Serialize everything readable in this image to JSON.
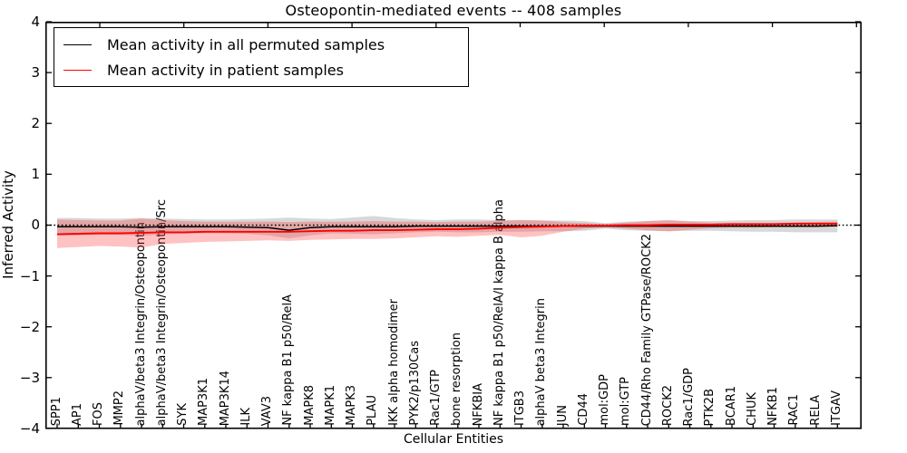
{
  "title": "Osteopontin-mediated events -- 408 samples",
  "axes": {
    "x_label": "Cellular Entities",
    "y_label": "Inferred Activity",
    "y_tick_labels": [
      "4",
      "3",
      "2",
      "1",
      "0",
      "−1",
      "−2",
      "−3",
      "−4"
    ]
  },
  "legend": {
    "items": [
      {
        "label": "Mean activity in all permuted samples",
        "color": "#000000"
      },
      {
        "label": "Mean activity in patient samples",
        "color": "#ff0000"
      }
    ]
  },
  "chart_data": {
    "type": "line",
    "title": "Osteopontin-mediated events -- 408 samples",
    "xlabel": "Cellular Entities",
    "ylabel": "Inferred Activity",
    "ylim": [
      -4,
      4
    ],
    "y_ticks": [
      4,
      3,
      2,
      1,
      0,
      -1,
      -2,
      -3,
      -4
    ],
    "grid": false,
    "legend_position": "upper left",
    "zero_line": {
      "y": 0,
      "style": "dotted",
      "color": "#000000"
    },
    "categories": [
      "SPP1",
      "AP1",
      "FOS",
      "MMP2",
      "alphaV/beta3 Integrin/Osteopontin",
      "alphaV/beta3 Integrin/Osteopontin/Src",
      "SYK",
      "MAP3K1",
      "MAP3K14",
      "ILK",
      "VAV3",
      "NF kappa B1 p50/RelA",
      "MAPK8",
      "MAPK1",
      "MAPK3",
      "PLAU",
      "IKK alpha homodimer",
      "PYK2/p130Cas",
      "Rac1/GTP",
      "bone resorption",
      "NFKBIA",
      "NF kappa B1 p50/RelA/I kappa B alpha",
      "ITGB3",
      "alphaV beta3 Integrin",
      "JUN",
      "CD44",
      "mol:GDP",
      "mol:GTP",
      "CD44/Rho Family GTPase/ROCK2",
      "ROCK2",
      "Rac1/GDP",
      "PTK2B",
      "BCAR1",
      "CHUK",
      "NFKB1",
      "RAC1",
      "RELA",
      "ITGAV"
    ],
    "series": [
      {
        "name": "Mean activity in all permuted samples",
        "color": "#000000",
        "width": 1.5,
        "values": [
          -0.03,
          -0.03,
          -0.03,
          -0.03,
          -0.04,
          -0.03,
          -0.03,
          -0.03,
          -0.03,
          -0.04,
          -0.05,
          -0.1,
          -0.05,
          -0.03,
          -0.03,
          -0.03,
          -0.03,
          -0.02,
          -0.02,
          -0.02,
          -0.02,
          -0.02,
          -0.02,
          -0.02,
          -0.02,
          -0.02,
          -0.02,
          -0.02,
          -0.02,
          -0.02,
          -0.02,
          -0.02,
          -0.02,
          -0.02,
          -0.02,
          -0.02,
          -0.02,
          -0.01
        ]
      },
      {
        "name": "Mean activity in patient samples",
        "color": "#ff0000",
        "width": 1.9,
        "values": [
          -0.18,
          -0.17,
          -0.16,
          -0.16,
          -0.15,
          -0.14,
          -0.14,
          -0.13,
          -0.13,
          -0.13,
          -0.13,
          -0.13,
          -0.12,
          -0.11,
          -0.11,
          -0.1,
          -0.1,
          -0.09,
          -0.08,
          -0.08,
          -0.07,
          -0.05,
          -0.04,
          -0.03,
          -0.02,
          -0.01,
          -0.01,
          0.0,
          0.0,
          0.01,
          0.01,
          0.01,
          0.02,
          0.02,
          0.02,
          0.03,
          0.03,
          0.03
        ]
      }
    ],
    "bands": [
      {
        "name": "permuted-samples-range",
        "color": "rgba(125,125,125,0.30)",
        "upper": [
          0.14,
          0.14,
          0.13,
          0.13,
          0.14,
          0.13,
          0.12,
          0.11,
          0.11,
          0.12,
          0.13,
          0.15,
          0.13,
          0.12,
          0.15,
          0.18,
          0.14,
          0.11,
          0.1,
          0.11,
          0.11,
          0.1,
          0.1,
          0.09,
          0.09,
          0.08,
          0.04,
          0.07,
          0.08,
          0.09,
          0.08,
          0.08,
          0.09,
          0.1,
          0.1,
          0.11,
          0.11,
          0.11
        ],
        "lower": [
          -0.2,
          -0.2,
          -0.19,
          -0.19,
          -0.21,
          -0.18,
          -0.17,
          -0.16,
          -0.16,
          -0.17,
          -0.2,
          -0.26,
          -0.2,
          -0.16,
          -0.17,
          -0.18,
          -0.16,
          -0.14,
          -0.13,
          -0.14,
          -0.14,
          -0.13,
          -0.13,
          -0.12,
          -0.12,
          -0.11,
          -0.07,
          -0.1,
          -0.11,
          -0.12,
          -0.11,
          -0.11,
          -0.12,
          -0.13,
          -0.13,
          -0.14,
          -0.14,
          -0.14
        ]
      },
      {
        "name": "patient-samples-range",
        "color": "rgba(255,35,35,0.28)",
        "upper": [
          0.11,
          0.1,
          0.09,
          0.09,
          0.13,
          0.1,
          0.08,
          0.07,
          0.07,
          0.07,
          0.07,
          0.06,
          0.07,
          0.07,
          0.07,
          0.08,
          0.07,
          0.07,
          0.06,
          0.07,
          0.07,
          0.08,
          0.1,
          0.09,
          0.06,
          0.04,
          0.02,
          0.05,
          0.08,
          0.1,
          0.07,
          0.05,
          0.05,
          0.05,
          0.05,
          0.05,
          0.06,
          0.07
        ],
        "lower": [
          -0.45,
          -0.43,
          -0.41,
          -0.42,
          -0.44,
          -0.37,
          -0.35,
          -0.33,
          -0.32,
          -0.31,
          -0.3,
          -0.31,
          -0.29,
          -0.28,
          -0.27,
          -0.27,
          -0.26,
          -0.24,
          -0.22,
          -0.23,
          -0.21,
          -0.19,
          -0.24,
          -0.21,
          -0.13,
          -0.07,
          -0.04,
          -0.07,
          -0.1,
          -0.12,
          -0.09,
          -0.06,
          -0.05,
          -0.05,
          -0.04,
          -0.04,
          -0.04,
          -0.03
        ]
      }
    ]
  }
}
